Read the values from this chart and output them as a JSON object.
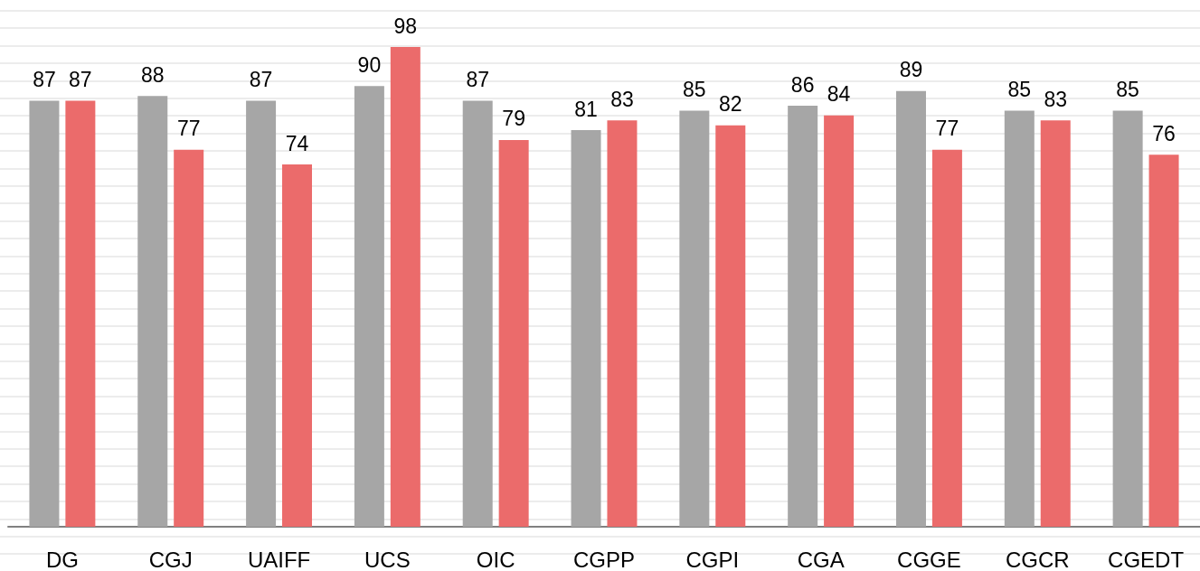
{
  "chart_data": {
    "type": "bar",
    "categories": [
      "DG",
      "CGJ",
      "UAIFF",
      "UCS",
      "OIC",
      "CGPP",
      "CGPI",
      "CGA",
      "CGGE",
      "CGCR",
      "CGEDT"
    ],
    "series": [
      {
        "color": "#a6a6a6",
        "values": [
          87,
          88,
          87,
          90,
          87,
          81,
          85,
          86,
          89,
          85,
          85
        ]
      },
      {
        "color": "#eb6b6b",
        "values": [
          87,
          77,
          74,
          98,
          79,
          83,
          82,
          84,
          77,
          83,
          76
        ]
      }
    ],
    "data_labels": true,
    "tick_labels": "x"
  }
}
